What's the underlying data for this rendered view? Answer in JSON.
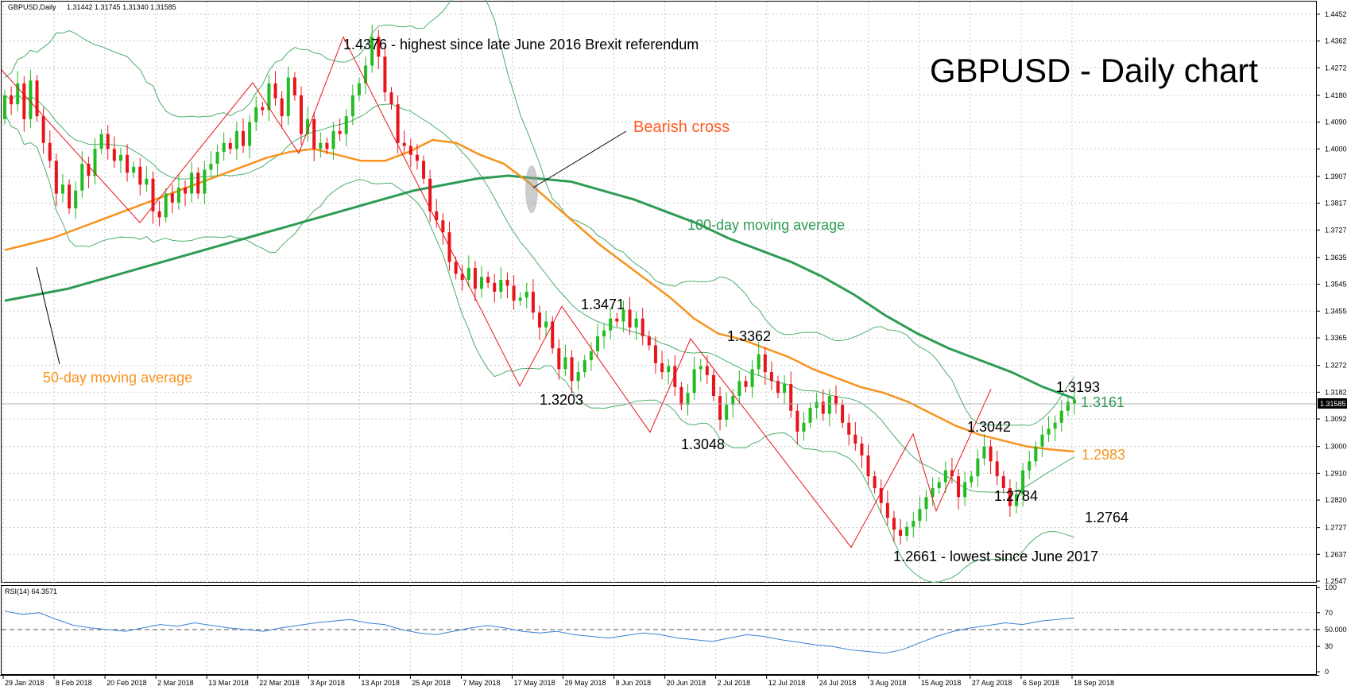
{
  "header": {
    "symbol_label": "GBPUSD,Daily",
    "ohlc": "1.31442 1.31745 1.31340 1.31585"
  },
  "chart_title": "GBPUSD - Daily chart",
  "annotations": {
    "peak": "1.4376 - highest since late June 2016 Brexit referendum",
    "bearish_cross": "Bearish cross",
    "ma100_label": "100-day moving average",
    "ma50_label": "50-day moving average",
    "p_13471": "1.3471",
    "p_13203": "1.3203",
    "p_13362": "1.3362",
    "p_13048": "1.3048",
    "p_13193": "1.3193",
    "p_13161": "1.3161",
    "p_13042": "1.3042",
    "p_12983": "1.2983",
    "p_12784": "1.2784",
    "p_12764": "1.2764",
    "p_low": "1.2661 - lowest since June 2017"
  },
  "colors": {
    "bull": "#22bb22",
    "bear": "#e8141c",
    "ma50": "#f7931e",
    "ma100": "#2e9b54",
    "bands": "#4caf6a",
    "zigzag": "#e8141c",
    "rsi": "#3a7fd5",
    "annotation_orange": "#ff5a1f"
  },
  "chart_data": [
    {
      "type": "candlestick",
      "title": "GBPUSD - Daily chart",
      "ylim": [
        1.2545,
        1.4495
      ],
      "y_ticks": [
        "1.44525",
        "1.43625",
        "1.42725",
        "1.41800",
        "1.40900",
        "1.40000",
        "1.39075",
        "1.38175",
        "1.37275",
        "1.36350",
        "1.35450",
        "1.34550",
        "1.33650",
        "1.32725",
        "1.31825",
        "1.30925",
        "1.30000",
        "1.29100",
        "1.28200",
        "1.27275",
        "1.26375",
        "1.25475"
      ],
      "current_price_label": "1.31585",
      "x_labels": [
        "29 Jan 2018",
        "8 Feb 2018",
        "20 Feb 2018",
        "2 Mar 2018",
        "13 Mar 2018",
        "22 Mar 2018",
        "3 Apr 2018",
        "13 Apr 2018",
        "25 Apr 2018",
        "7 May 2018",
        "17 May 2018",
        "29 May 2018",
        "8 Jun 2018",
        "20 Jun 2018",
        "2 Jul 2018",
        "12 Jul 2018",
        "24 Jul 2018",
        "3 Aug 2018",
        "15 Aug 2018",
        "27 Aug 2018",
        "6 Sep 2018",
        "18 Sep 2018"
      ],
      "close": [
        1.418,
        1.415,
        1.422,
        1.41,
        1.423,
        1.411,
        1.402,
        1.396,
        1.385,
        1.388,
        1.38,
        1.386,
        1.395,
        1.391,
        1.4,
        1.405,
        1.4,
        1.396,
        1.398,
        1.392,
        1.394,
        1.388,
        1.39,
        1.379,
        1.377,
        1.385,
        1.382,
        1.387,
        1.385,
        1.392,
        1.385,
        1.393,
        1.395,
        1.399,
        1.402,
        1.4,
        1.406,
        1.401,
        1.409,
        1.414,
        1.413,
        1.422,
        1.417,
        1.411,
        1.424,
        1.418,
        1.405,
        1.41,
        1.4,
        1.402,
        1.4,
        1.406,
        1.405,
        1.411,
        1.418,
        1.422,
        1.428,
        1.4376,
        1.431,
        1.419,
        1.415,
        1.402,
        1.401,
        1.398,
        1.396,
        1.39,
        1.379,
        1.376,
        1.372,
        1.362,
        1.358,
        1.356,
        1.36,
        1.353,
        1.357,
        1.355,
        1.352,
        1.356,
        1.354,
        1.349,
        1.35,
        1.352,
        1.345,
        1.34,
        1.342,
        1.333,
        1.326,
        1.33,
        1.322,
        1.325,
        1.329,
        1.332,
        1.337,
        1.339,
        1.343,
        1.342,
        1.346,
        1.34,
        1.343,
        1.337,
        1.334,
        1.328,
        1.325,
        1.327,
        1.32,
        1.314,
        1.318,
        1.326,
        1.327,
        1.324,
        1.317,
        1.309,
        1.314,
        1.317,
        1.322,
        1.32,
        1.326,
        1.331,
        1.325,
        1.322,
        1.318,
        1.321,
        1.312,
        1.305,
        1.308,
        1.313,
        1.315,
        1.311,
        1.317,
        1.314,
        1.308,
        1.304,
        1.301,
        1.297,
        1.29,
        1.286,
        1.281,
        1.276,
        1.272,
        1.27,
        1.273,
        1.275,
        1.279,
        1.283,
        1.286,
        1.288,
        1.292,
        1.29,
        1.283,
        1.288,
        1.29,
        1.296,
        1.3,
        1.295,
        1.29,
        1.286,
        1.28,
        1.284,
        1.292,
        1.295,
        1.3,
        1.304,
        1.306,
        1.308,
        1.312,
        1.315,
        1.3158
      ],
      "open": [
        1.41,
        1.418,
        1.415,
        1.422,
        1.41,
        1.423,
        1.411,
        1.402,
        1.396,
        1.385,
        1.388,
        1.38,
        1.386,
        1.395,
        1.391,
        1.4,
        1.405,
        1.4,
        1.396,
        1.398,
        1.392,
        1.394,
        1.388,
        1.39,
        1.379,
        1.377,
        1.385,
        1.382,
        1.387,
        1.385,
        1.392,
        1.385,
        1.393,
        1.395,
        1.399,
        1.402,
        1.4,
        1.406,
        1.401,
        1.409,
        1.414,
        1.413,
        1.422,
        1.417,
        1.411,
        1.424,
        1.418,
        1.405,
        1.41,
        1.4,
        1.402,
        1.4,
        1.406,
        1.405,
        1.411,
        1.418,
        1.422,
        1.428,
        1.4376,
        1.431,
        1.419,
        1.415,
        1.402,
        1.401,
        1.398,
        1.396,
        1.39,
        1.379,
        1.376,
        1.372,
        1.362,
        1.358,
        1.356,
        1.36,
        1.353,
        1.357,
        1.355,
        1.352,
        1.356,
        1.354,
        1.349,
        1.35,
        1.352,
        1.345,
        1.34,
        1.342,
        1.333,
        1.326,
        1.33,
        1.322,
        1.325,
        1.329,
        1.332,
        1.337,
        1.339,
        1.343,
        1.342,
        1.346,
        1.34,
        1.343,
        1.337,
        1.334,
        1.328,
        1.325,
        1.327,
        1.32,
        1.314,
        1.318,
        1.326,
        1.327,
        1.324,
        1.317,
        1.309,
        1.314,
        1.317,
        1.322,
        1.32,
        1.326,
        1.331,
        1.325,
        1.322,
        1.318,
        1.321,
        1.312,
        1.305,
        1.308,
        1.313,
        1.315,
        1.311,
        1.317,
        1.314,
        1.308,
        1.304,
        1.301,
        1.297,
        1.29,
        1.286,
        1.281,
        1.276,
        1.272,
        1.27,
        1.273,
        1.275,
        1.279,
        1.283,
        1.286,
        1.288,
        1.292,
        1.29,
        1.283,
        1.288,
        1.29,
        1.296,
        1.3,
        1.295,
        1.29,
        1.286,
        1.28,
        1.284,
        1.292,
        1.295,
        1.3,
        1.304,
        1.306,
        1.308,
        1.312,
        1.3144
      ],
      "ma50": [
        1.366,
        1.368,
        1.37,
        1.373,
        1.376,
        1.379,
        1.382,
        1.385,
        1.388,
        1.391,
        1.394,
        1.397,
        1.399,
        1.4,
        1.398,
        1.396,
        1.396,
        1.399,
        1.403,
        1.402,
        1.398,
        1.395,
        1.389,
        1.382,
        1.375,
        1.368,
        1.362,
        1.356,
        1.35,
        1.343,
        1.338,
        1.336,
        1.333,
        1.33,
        1.326,
        1.323,
        1.32,
        1.318,
        1.315,
        1.311,
        1.307,
        1.304,
        1.302,
        1.3,
        1.299,
        1.2983
      ],
      "ma100": [
        1.349,
        1.351,
        1.353,
        1.356,
        1.359,
        1.362,
        1.365,
        1.368,
        1.371,
        1.374,
        1.377,
        1.38,
        1.383,
        1.386,
        1.388,
        1.39,
        1.391,
        1.39,
        1.389,
        1.386,
        1.383,
        1.379,
        1.375,
        1.37,
        1.366,
        1.362,
        1.357,
        1.351,
        1.344,
        1.338,
        1.333,
        1.329,
        1.325,
        1.32,
        1.3161
      ],
      "zigzag_levels": [
        1.4376,
        1.3203,
        1.3471,
        1.3048,
        1.3362,
        1.2661,
        1.3042,
        1.2784,
        1.3193
      ]
    },
    {
      "type": "line",
      "title": "RSI(14) 64.3571",
      "ylim": [
        0,
        100
      ],
      "y_ticks": [
        "100",
        "70",
        "50.0000",
        "30",
        "0"
      ],
      "reference_line": 50,
      "values": [
        72,
        68,
        70,
        62,
        55,
        52,
        50,
        48,
        52,
        56,
        54,
        58,
        55,
        52,
        50,
        48,
        52,
        55,
        58,
        60,
        62,
        58,
        56,
        50,
        46,
        44,
        48,
        52,
        55,
        52,
        48,
        46,
        48,
        44,
        42,
        40,
        43,
        46,
        44,
        40,
        38,
        36,
        40,
        44,
        42,
        38,
        35,
        32,
        30,
        26,
        24,
        22,
        26,
        34,
        42,
        48,
        52,
        55,
        58,
        56,
        60,
        62,
        64
      ]
    }
  ]
}
